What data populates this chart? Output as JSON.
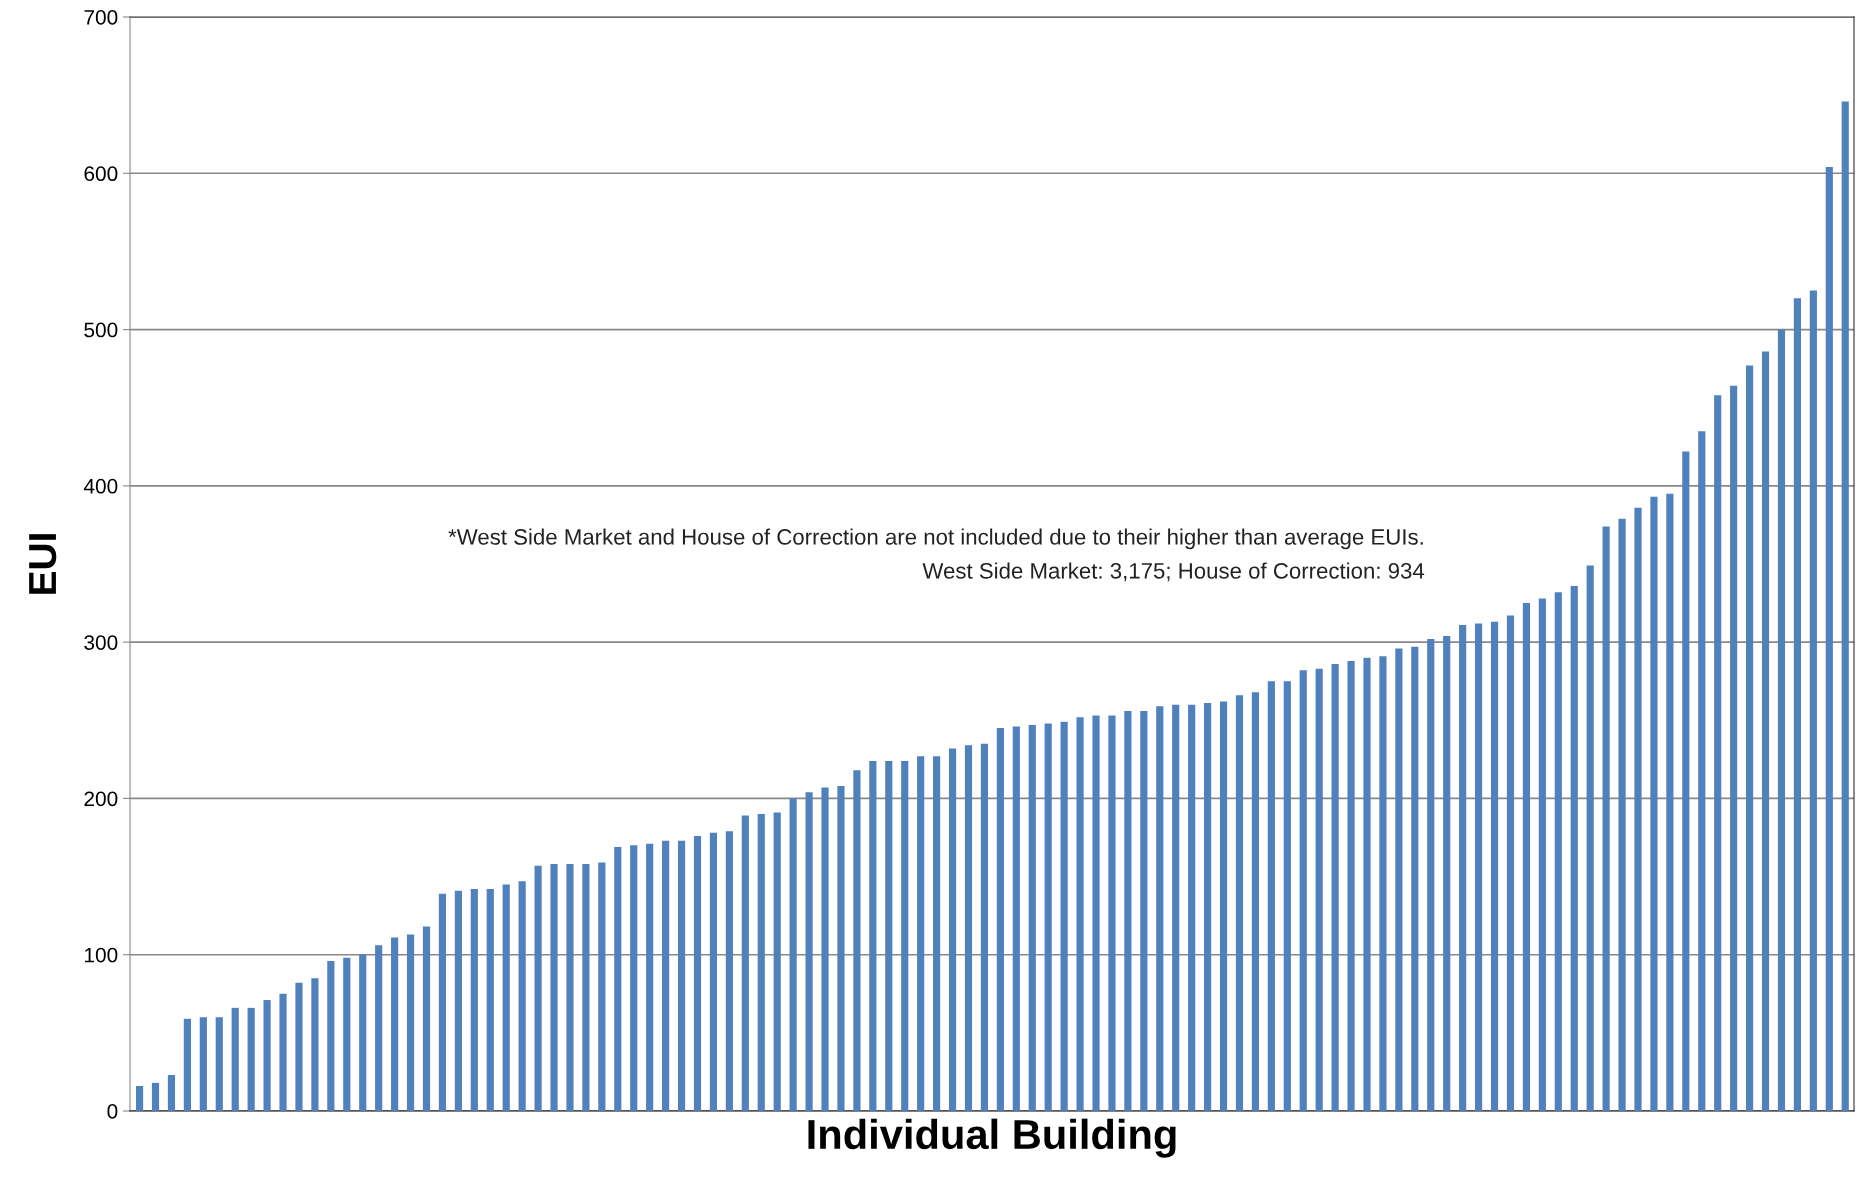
{
  "chart_data": {
    "type": "bar",
    "xlabel": "Individual Building",
    "ylabel": "EUI",
    "categories": [
      null,
      null,
      null,
      null,
      null,
      null,
      null,
      null,
      null,
      null,
      null,
      null,
      null,
      null,
      null,
      null,
      null,
      null,
      null,
      null,
      null,
      null,
      null,
      null,
      null,
      null,
      null,
      null,
      null,
      null,
      null,
      null,
      null,
      null,
      null,
      null,
      null,
      null,
      null,
      null,
      null,
      null,
      null,
      null,
      null,
      null,
      null,
      null,
      null,
      null,
      null,
      null,
      null,
      null,
      null,
      null,
      null,
      null,
      null,
      null,
      null,
      null,
      null,
      null,
      null,
      null,
      null,
      null,
      null,
      null,
      null,
      null,
      null,
      null,
      null,
      null,
      null,
      null,
      null,
      null,
      null,
      null,
      null,
      null,
      null,
      null,
      null,
      null,
      null,
      null,
      null,
      null,
      null,
      null,
      null,
      null,
      null,
      null,
      null,
      null,
      null,
      null,
      null,
      null,
      null,
      null,
      null,
      null
    ],
    "values": [
      16,
      18,
      23,
      59,
      60,
      60,
      66,
      66,
      71,
      75,
      82,
      85,
      96,
      98,
      100,
      106,
      111,
      113,
      118,
      139,
      141,
      142,
      142,
      145,
      147,
      157,
      158,
      158,
      158,
      159,
      169,
      170,
      171,
      173,
      173,
      176,
      178,
      179,
      189,
      190,
      191,
      200,
      204,
      207,
      208,
      218,
      224,
      224,
      224,
      227,
      227,
      232,
      234,
      235,
      245,
      246,
      247,
      248,
      249,
      252,
      253,
      253,
      256,
      256,
      259,
      260,
      260,
      261,
      262,
      266,
      268,
      275,
      275,
      282,
      283,
      286,
      288,
      290,
      291,
      296,
      297,
      302,
      304,
      311,
      312,
      313,
      317,
      325,
      328,
      332,
      336,
      349,
      374,
      379,
      386,
      393,
      395,
      422,
      435,
      458,
      464,
      477,
      486,
      500,
      520,
      525,
      604,
      646
    ],
    "color": "#4f81bd",
    "ylim": [
      0,
      700
    ],
    "yticks": [
      0,
      100,
      200,
      300,
      400,
      500,
      600,
      700
    ],
    "grid": "y",
    "annotations": [
      "*West Side Market and House of Correction are not included due to their higher than average EUIs.",
      "West Side Market: 3,175; House of Correction: 934"
    ]
  }
}
